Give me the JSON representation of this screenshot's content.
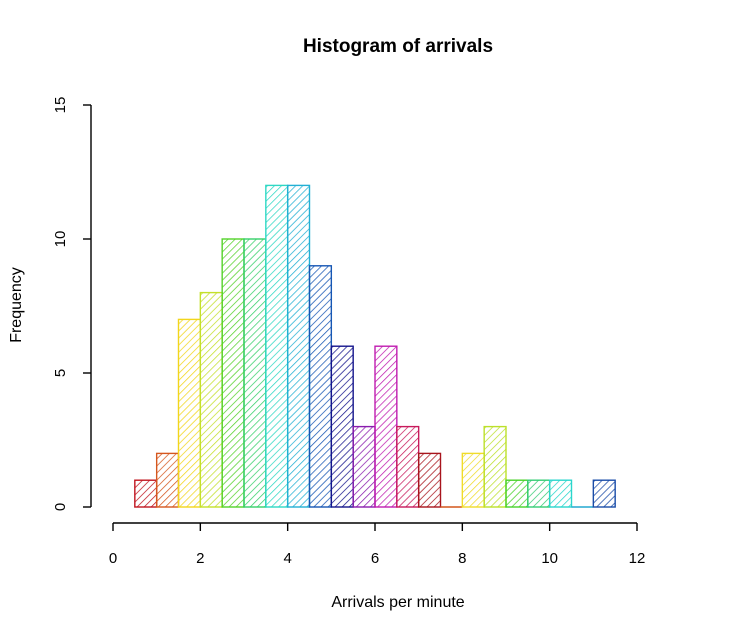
{
  "chart_data": {
    "type": "bar",
    "title": "Histogram of arrivals",
    "xlabel": "Arrivals per minute",
    "ylabel": "Frequency",
    "bin_width": 0.5,
    "bins": [
      {
        "start": 0.5,
        "end": 1.0,
        "count": 1,
        "color": "#c0141e"
      },
      {
        "start": 1.0,
        "end": 1.5,
        "count": 2,
        "color": "#d5571e"
      },
      {
        "start": 1.5,
        "end": 2.0,
        "count": 7,
        "color": "#f2d61c"
      },
      {
        "start": 2.0,
        "end": 2.5,
        "count": 8,
        "color": "#c4e02a"
      },
      {
        "start": 2.5,
        "end": 3.0,
        "count": 10,
        "color": "#54d22a"
      },
      {
        "start": 3.0,
        "end": 3.5,
        "count": 10,
        "color": "#36d06a"
      },
      {
        "start": 3.5,
        "end": 4.0,
        "count": 12,
        "color": "#2ed8c4"
      },
      {
        "start": 4.0,
        "end": 4.5,
        "count": 12,
        "color": "#22b0d4"
      },
      {
        "start": 4.5,
        "end": 5.0,
        "count": 9,
        "color": "#1656b4"
      },
      {
        "start": 5.0,
        "end": 5.5,
        "count": 6,
        "color": "#14148c"
      },
      {
        "start": 5.5,
        "end": 6.0,
        "count": 3,
        "color": "#8a1cae"
      },
      {
        "start": 6.0,
        "end": 6.5,
        "count": 6,
        "color": "#c01cb0"
      },
      {
        "start": 6.5,
        "end": 7.0,
        "count": 3,
        "color": "#c81a5c"
      },
      {
        "start": 7.0,
        "end": 7.5,
        "count": 2,
        "color": "#a8141c"
      },
      {
        "start": 7.5,
        "end": 8.0,
        "count": 0,
        "color": "#d4561c"
      },
      {
        "start": 8.0,
        "end": 8.5,
        "count": 2,
        "color": "#f0dc2a"
      },
      {
        "start": 8.5,
        "end": 9.0,
        "count": 3,
        "color": "#bce02a"
      },
      {
        "start": 9.0,
        "end": 9.5,
        "count": 1,
        "color": "#48d22a"
      },
      {
        "start": 9.5,
        "end": 10.0,
        "count": 1,
        "color": "#34cc74"
      },
      {
        "start": 10.0,
        "end": 10.5,
        "count": 1,
        "color": "#2ad6cc"
      },
      {
        "start": 10.5,
        "end": 11.0,
        "count": 0,
        "color": "#24a8d0"
      },
      {
        "start": 11.0,
        "end": 11.5,
        "count": 1,
        "color": "#1a4ca8"
      }
    ],
    "xlim": [
      0,
      12
    ],
    "ylim": [
      0,
      15
    ],
    "x_ticks": [
      0,
      2,
      4,
      6,
      8,
      10,
      12
    ],
    "y_ticks": [
      0,
      5,
      10,
      15
    ],
    "grid": false,
    "fill_style": "diagonal hatch"
  }
}
